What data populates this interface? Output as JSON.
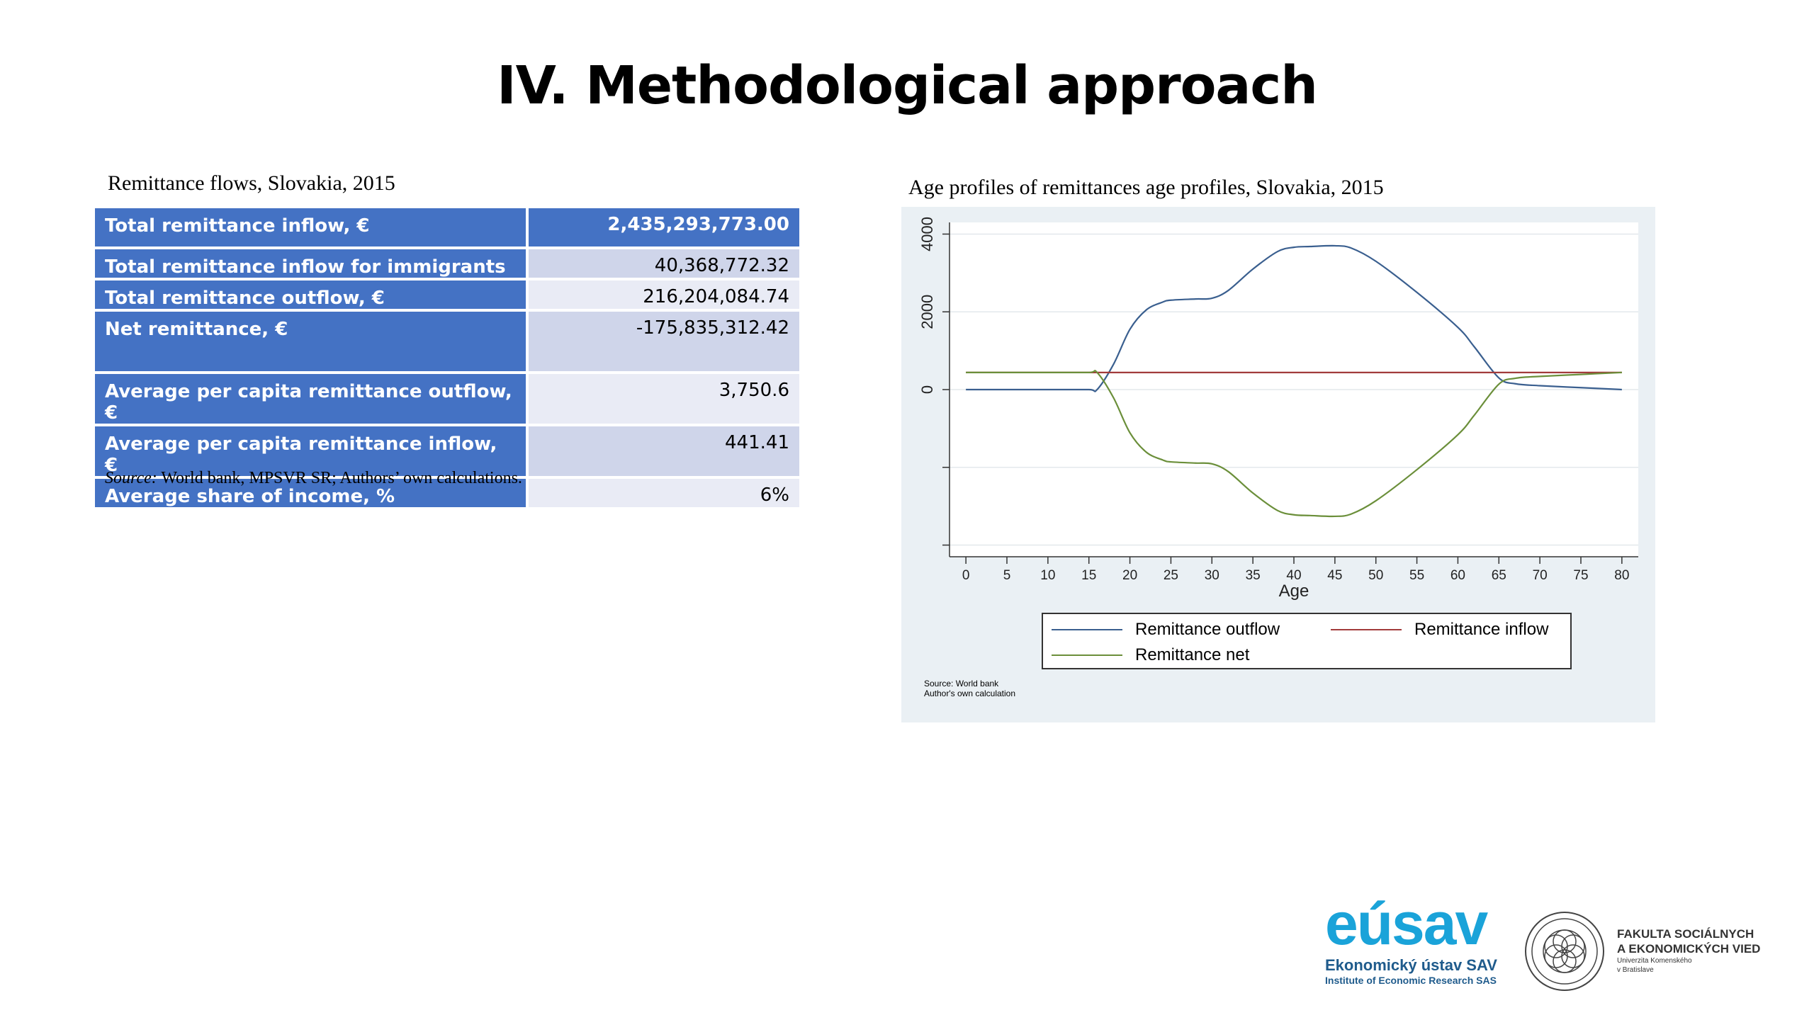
{
  "slide": {
    "title": "IV. Methodological approach"
  },
  "table": {
    "caption": "Remittance flows, Slovakia, 2015",
    "rows": [
      {
        "label": "Total remittance inflow, €",
        "value": "2,435,293,773.00"
      },
      {
        "label": "Total remittance inflow for immigrants",
        "value": "40,368,772.32"
      },
      {
        "label": "Total remittance outflow, €",
        "value": "216,204,084.74"
      },
      {
        "label": "Net remittance, €",
        "value": "-175,835,312.42"
      },
      {
        "label": "Average per capita remittance outflow, €",
        "value": "3,750.6"
      },
      {
        "label": "Average per capita remittance inflow, €",
        "value": "441.41"
      },
      {
        "label": "Average share of income, %",
        "value": "6%"
      }
    ],
    "source_label": "Source:",
    "source_text": " World bank, MPSVR SR; Authors’ own calculations."
  },
  "chart_caption": "Age profiles of remittances age profiles, Slovakia, 2015",
  "chart_data": {
    "type": "line",
    "xlabel": "Age",
    "ylabel": "",
    "xlim": [
      -2,
      82
    ],
    "ylim": [
      -4300,
      4300
    ],
    "x_ticks": [
      0,
      5,
      10,
      15,
      20,
      25,
      30,
      35,
      40,
      45,
      50,
      55,
      60,
      65,
      70,
      75,
      80
    ],
    "y_ticks": [
      4000,
      2000,
      0,
      -2000,
      -4000
    ],
    "y_tick_labels": [
      "4000",
      "2000",
      "0",
      "",
      ""
    ],
    "grid": true,
    "legend_position": "bottom",
    "x": [
      0,
      5,
      10,
      15,
      16,
      18,
      20,
      22,
      24,
      25,
      28,
      30,
      32,
      35,
      38,
      40,
      42,
      45,
      47,
      50,
      55,
      60,
      62,
      65,
      67,
      70,
      75,
      80
    ],
    "series": [
      {
        "name": "Remittance outflow",
        "color": "#3a5f8f",
        "values": [
          0,
          0,
          0,
          0,
          0,
          650,
          1550,
          2050,
          2250,
          2300,
          2330,
          2350,
          2550,
          3100,
          3550,
          3660,
          3680,
          3700,
          3640,
          3300,
          2500,
          1600,
          1100,
          300,
          150,
          100,
          50,
          0
        ]
      },
      {
        "name": "Remittance inflow",
        "color": "#a23b3b",
        "values": [
          440,
          440,
          440,
          440,
          440,
          440,
          440,
          440,
          440,
          440,
          440,
          440,
          440,
          440,
          440,
          440,
          440,
          440,
          440,
          440,
          440,
          440,
          440,
          440,
          440,
          440,
          440,
          440
        ]
      },
      {
        "name": "Remittance net",
        "color": "#6b8f3a",
        "values": [
          440,
          440,
          440,
          440,
          440,
          -210,
          -1110,
          -1610,
          -1810,
          -1860,
          -1890,
          -1910,
          -2110,
          -2660,
          -3110,
          -3220,
          -3240,
          -3260,
          -3200,
          -2860,
          -2060,
          -1160,
          -660,
          140,
          290,
          340,
          390,
          440
        ]
      }
    ],
    "source_lines": [
      "Source: World bank",
      "Author's own calculation"
    ]
  },
  "logos": {
    "eusav_word": "eúsav",
    "eusav_sub1": "Ekonomický ústav SAV",
    "eusav_sub2": "Institute of Economic Research SAS",
    "fsev_line1": "FAKULTA SOCIÁLNYCH",
    "fsev_line2": "A EKONOMICKÝCH VIED",
    "fsev_line3": "Univerzita Komenského",
    "fsev_line4": "v Bratislave"
  },
  "colors": {
    "table_header": "#4472c4",
    "table_row_dark": "#cfd5ea",
    "table_row_light": "#e9ebf5",
    "chart_background": "#eaf0f4",
    "logo_blue": "#1aa3d9"
  }
}
